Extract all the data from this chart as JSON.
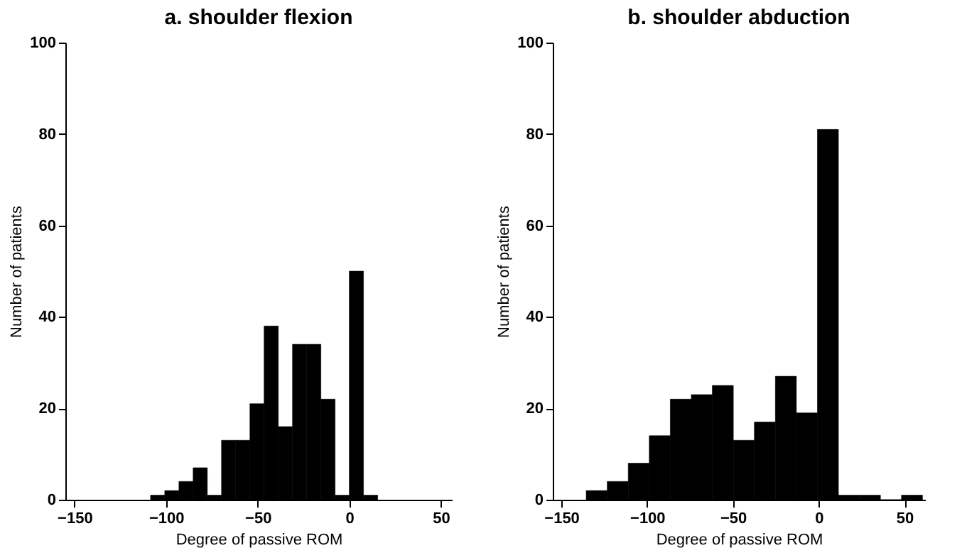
{
  "chart_data": [
    {
      "type": "histogram",
      "title": "a. shoulder flexion",
      "xlabel": "Degree of passive ROM",
      "ylabel": "Number of patients",
      "color": "#000000",
      "bins": [
        -108.5,
        -100.75,
        -93,
        -85.25,
        -77.5,
        -69.75,
        -62,
        -54.25,
        -46.5,
        -38.75,
        -31,
        -23.25,
        -15.5,
        -7.75,
        0,
        7.75,
        15.5
      ],
      "values": [
        1,
        2,
        4,
        7,
        1,
        13,
        13,
        21,
        38,
        16,
        34,
        34,
        22,
        1,
        50,
        1
      ],
      "xlim": [
        -155,
        56
      ],
      "xticks": [
        -150,
        -100,
        -50,
        0,
        50
      ],
      "ylim": [
        0,
        100
      ],
      "yticks": [
        0,
        20,
        40,
        60,
        80,
        100
      ],
      "grid": false
    },
    {
      "type": "histogram",
      "title": "b. shoulder abduction",
      "xlabel": "Degree of passive ROM",
      "ylabel": "Number of patients",
      "color": "#000000",
      "bins": [
        -135.5,
        -123.25,
        -111,
        -98.75,
        -86.5,
        -74.25,
        -62,
        -49.75,
        -37.5,
        -25.25,
        -13,
        -0.75,
        11.5,
        23.75,
        36,
        48.25,
        60.5
      ],
      "values": [
        2,
        4,
        8,
        14,
        22,
        23,
        25,
        13,
        17,
        27,
        19,
        81,
        1,
        1,
        0,
        1
      ],
      "xlim": [
        -155,
        62
      ],
      "xticks": [
        -150,
        -100,
        -50,
        0,
        50
      ],
      "ylim": [
        0,
        100
      ],
      "yticks": [
        0,
        20,
        40,
        60,
        80,
        100
      ],
      "grid": false
    }
  ]
}
